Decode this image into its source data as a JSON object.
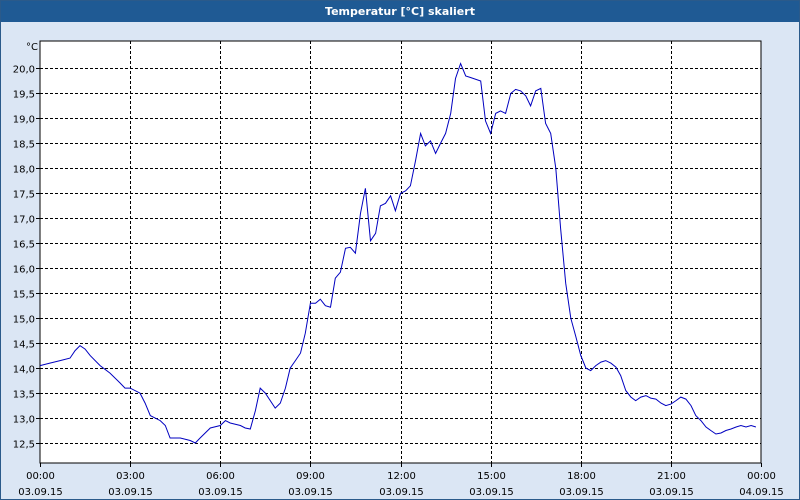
{
  "window": {
    "title": "Temperatur [°C] skaliert"
  },
  "chart_data": {
    "type": "line",
    "title": "Temperatur [°C] skaliert",
    "ylabel": "°C",
    "xlabel": "",
    "ylim": [
      12.1,
      20.55
    ],
    "xlim": [
      0,
      24
    ],
    "grid": true,
    "line_color": "#0000c0",
    "y_ticks": [
      12.5,
      13.0,
      13.5,
      14.0,
      14.5,
      15.0,
      15.5,
      16.0,
      16.5,
      17.0,
      17.5,
      18.0,
      18.5,
      19.0,
      19.5,
      20.0
    ],
    "y_tick_labels": [
      "12,5",
      "13,0",
      "13,5",
      "14,0",
      "14,5",
      "15,0",
      "15,5",
      "16,0",
      "16,5",
      "17,0",
      "17,5",
      "18,0",
      "18,5",
      "19,0",
      "19,5",
      "20,0"
    ],
    "x_ticks": [
      {
        "hour": 0,
        "time": "00:00",
        "date": "03.09.15"
      },
      {
        "hour": 3,
        "time": "03:00",
        "date": "03.09.15"
      },
      {
        "hour": 6,
        "time": "06:00",
        "date": "03.09.15"
      },
      {
        "hour": 9,
        "time": "09:00",
        "date": "03.09.15"
      },
      {
        "hour": 12,
        "time": "12:00",
        "date": "03.09.15"
      },
      {
        "hour": 15,
        "time": "15:00",
        "date": "03.09.15"
      },
      {
        "hour": 18,
        "time": "18:00",
        "date": "03.09.15"
      },
      {
        "hour": 21,
        "time": "21:00",
        "date": "03.09.15"
      },
      {
        "hour": 24,
        "time": "00:00",
        "date": "04.09.15"
      }
    ],
    "series": [
      {
        "values": [
          [
            0.0,
            14.05
          ],
          [
            0.33,
            14.1
          ],
          [
            0.67,
            14.15
          ],
          [
            1.0,
            14.2
          ],
          [
            1.17,
            14.35
          ],
          [
            1.33,
            14.45
          ],
          [
            1.5,
            14.38
          ],
          [
            1.67,
            14.25
          ],
          [
            2.0,
            14.05
          ],
          [
            2.33,
            13.9
          ],
          [
            2.67,
            13.7
          ],
          [
            2.83,
            13.6
          ],
          [
            3.0,
            13.6
          ],
          [
            3.33,
            13.5
          ],
          [
            3.5,
            13.3
          ],
          [
            3.67,
            13.05
          ],
          [
            4.0,
            12.95
          ],
          [
            4.17,
            12.85
          ],
          [
            4.33,
            12.6
          ],
          [
            4.67,
            12.6
          ],
          [
            5.0,
            12.55
          ],
          [
            5.17,
            12.5
          ],
          [
            5.33,
            12.6
          ],
          [
            5.67,
            12.8
          ],
          [
            6.0,
            12.85
          ],
          [
            6.17,
            12.95
          ],
          [
            6.33,
            12.9
          ],
          [
            6.67,
            12.85
          ],
          [
            6.83,
            12.8
          ],
          [
            7.0,
            12.78
          ],
          [
            7.17,
            13.15
          ],
          [
            7.33,
            13.6
          ],
          [
            7.5,
            13.5
          ],
          [
            7.83,
            13.2
          ],
          [
            8.0,
            13.3
          ],
          [
            8.17,
            13.6
          ],
          [
            8.33,
            14.0
          ],
          [
            8.5,
            14.15
          ],
          [
            8.67,
            14.3
          ],
          [
            8.83,
            14.7
          ],
          [
            9.0,
            15.3
          ],
          [
            9.17,
            15.3
          ],
          [
            9.33,
            15.38
          ],
          [
            9.5,
            15.25
          ],
          [
            9.67,
            15.22
          ],
          [
            9.83,
            15.8
          ],
          [
            10.0,
            15.92
          ],
          [
            10.17,
            16.4
          ],
          [
            10.33,
            16.42
          ],
          [
            10.5,
            16.3
          ],
          [
            10.67,
            17.1
          ],
          [
            10.83,
            17.6
          ],
          [
            11.0,
            16.55
          ],
          [
            11.17,
            16.7
          ],
          [
            11.33,
            17.25
          ],
          [
            11.5,
            17.3
          ],
          [
            11.67,
            17.45
          ],
          [
            11.83,
            17.15
          ],
          [
            12.0,
            17.5
          ],
          [
            12.17,
            17.55
          ],
          [
            12.33,
            17.65
          ],
          [
            12.5,
            18.15
          ],
          [
            12.67,
            18.7
          ],
          [
            12.83,
            18.45
          ],
          [
            13.0,
            18.55
          ],
          [
            13.17,
            18.3
          ],
          [
            13.33,
            18.5
          ],
          [
            13.5,
            18.7
          ],
          [
            13.67,
            19.1
          ],
          [
            13.83,
            19.8
          ],
          [
            14.0,
            20.1
          ],
          [
            14.17,
            19.85
          ],
          [
            14.33,
            19.82
          ],
          [
            14.67,
            19.75
          ],
          [
            14.83,
            18.95
          ],
          [
            15.0,
            18.7
          ],
          [
            15.17,
            19.1
          ],
          [
            15.33,
            19.15
          ],
          [
            15.5,
            19.1
          ],
          [
            15.67,
            19.5
          ],
          [
            15.83,
            19.58
          ],
          [
            16.0,
            19.55
          ],
          [
            16.17,
            19.45
          ],
          [
            16.33,
            19.25
          ],
          [
            16.5,
            19.55
          ],
          [
            16.67,
            19.6
          ],
          [
            16.83,
            18.9
          ],
          [
            17.0,
            18.7
          ],
          [
            17.17,
            18.0
          ],
          [
            17.33,
            16.8
          ],
          [
            17.5,
            15.7
          ],
          [
            17.67,
            15.0
          ],
          [
            17.83,
            14.65
          ],
          [
            18.0,
            14.25
          ],
          [
            18.17,
            14.0
          ],
          [
            18.33,
            13.95
          ],
          [
            18.5,
            14.05
          ],
          [
            18.67,
            14.12
          ],
          [
            18.83,
            14.15
          ],
          [
            19.0,
            14.1
          ],
          [
            19.17,
            14.02
          ],
          [
            19.33,
            13.85
          ],
          [
            19.5,
            13.55
          ],
          [
            19.67,
            13.42
          ],
          [
            19.83,
            13.35
          ],
          [
            20.0,
            13.42
          ],
          [
            20.17,
            13.45
          ],
          [
            20.33,
            13.4
          ],
          [
            20.5,
            13.38
          ],
          [
            20.67,
            13.3
          ],
          [
            20.83,
            13.25
          ],
          [
            21.0,
            13.28
          ],
          [
            21.17,
            13.35
          ],
          [
            21.33,
            13.42
          ],
          [
            21.5,
            13.38
          ],
          [
            21.67,
            13.25
          ],
          [
            21.83,
            13.05
          ],
          [
            22.0,
            12.95
          ],
          [
            22.17,
            12.82
          ],
          [
            22.33,
            12.75
          ],
          [
            22.5,
            12.68
          ],
          [
            22.67,
            12.7
          ],
          [
            22.83,
            12.75
          ],
          [
            23.0,
            12.78
          ],
          [
            23.17,
            12.82
          ],
          [
            23.33,
            12.85
          ],
          [
            23.5,
            12.82
          ],
          [
            23.67,
            12.85
          ],
          [
            23.83,
            12.82
          ]
        ]
      }
    ]
  }
}
